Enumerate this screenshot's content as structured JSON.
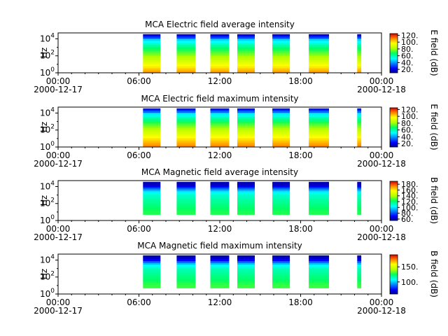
{
  "chart_data": [
    {
      "type": "heatmap",
      "title": "MCA  Electric field average intensity",
      "ylabel": "Hz",
      "colorbar_label": "E field (dB)",
      "colorbar_range": [
        10,
        125
      ],
      "colorbar_ticks": [
        "20.",
        "40.",
        "60.",
        "80.",
        "100.",
        "120."
      ],
      "y_scale": "log",
      "y_ticks": [
        "10^0",
        "10^2",
        "10^4"
      ],
      "x_ticks": [
        {
          "time": "00:00",
          "date": "2000-12-17"
        },
        {
          "time": "06:00",
          "date": ""
        },
        {
          "time": "12:00",
          "date": ""
        },
        {
          "time": "18:00",
          "date": ""
        },
        {
          "time": "00:00",
          "date": "2000-12-18"
        }
      ],
      "x_range_hours": [
        0,
        24
      ],
      "data_intervals_hours": [
        [
          6.3,
          7.6
        ],
        [
          8.8,
          10.2
        ],
        [
          11.3,
          12.7
        ],
        [
          13.3,
          14.6
        ],
        [
          15.9,
          17.2
        ],
        [
          18.6,
          20.1
        ],
        [
          22.2,
          22.5
        ]
      ],
      "spectrum_profile_db": [
        {
          "freq_hz": 1,
          "db": 110
        },
        {
          "freq_hz": 10,
          "db": 95
        },
        {
          "freq_hz": 100,
          "db": 80
        },
        {
          "freq_hz": 1000,
          "db": 65
        },
        {
          "freq_hz": 10000,
          "db": 45
        },
        {
          "freq_hz": 20000,
          "db": 20
        }
      ]
    },
    {
      "type": "heatmap",
      "title": "MCA  Electric field maximum intensity",
      "ylabel": "Hz",
      "colorbar_label": "E field (dB)",
      "colorbar_range": [
        10,
        125
      ],
      "colorbar_ticks": [
        "20.",
        "40.",
        "60.",
        "80.",
        "100.",
        "120."
      ],
      "y_scale": "log",
      "y_ticks": [
        "10^0",
        "10^2",
        "10^4"
      ],
      "x_ticks": [
        {
          "time": "00:00",
          "date": "2000-12-17"
        },
        {
          "time": "06:00",
          "date": ""
        },
        {
          "time": "12:00",
          "date": ""
        },
        {
          "time": "18:00",
          "date": ""
        },
        {
          "time": "00:00",
          "date": "2000-12-18"
        }
      ],
      "x_range_hours": [
        0,
        24
      ],
      "data_intervals_hours": [
        [
          6.3,
          7.6
        ],
        [
          8.8,
          10.2
        ],
        [
          11.3,
          12.7
        ],
        [
          13.3,
          14.6
        ],
        [
          15.9,
          17.2
        ],
        [
          18.6,
          20.1
        ],
        [
          22.2,
          22.5
        ]
      ],
      "spectrum_profile_db": [
        {
          "freq_hz": 1,
          "db": 112
        },
        {
          "freq_hz": 10,
          "db": 100
        },
        {
          "freq_hz": 100,
          "db": 85
        },
        {
          "freq_hz": 1000,
          "db": 68
        },
        {
          "freq_hz": 10000,
          "db": 48
        },
        {
          "freq_hz": 20000,
          "db": 25
        }
      ]
    },
    {
      "type": "heatmap",
      "title": "MCA  Magnetic field average intensity",
      "ylabel": "Hz",
      "colorbar_label": "B field (dB)",
      "colorbar_range": [
        55,
        190
      ],
      "colorbar_ticks": [
        "60.",
        "80.",
        "100.",
        "120.",
        "140.",
        "160.",
        "180."
      ],
      "y_scale": "log",
      "y_ticks": [
        "10^0",
        "10^2",
        "10^4"
      ],
      "x_ticks": [
        {
          "time": "00:00",
          "date": "2000-12-17"
        },
        {
          "time": "06:00",
          "date": ""
        },
        {
          "time": "12:00",
          "date": ""
        },
        {
          "time": "18:00",
          "date": ""
        },
        {
          "time": "00:00",
          "date": "2000-12-18"
        }
      ],
      "x_range_hours": [
        0,
        24
      ],
      "data_intervals_hours": [
        [
          6.3,
          7.6
        ],
        [
          8.8,
          10.2
        ],
        [
          11.3,
          12.7
        ],
        [
          13.3,
          14.6
        ],
        [
          15.9,
          17.2
        ],
        [
          18.6,
          20.1
        ],
        [
          22.2,
          22.5
        ]
      ],
      "spectrum_profile_db": [
        {
          "freq_hz": 10,
          "db": 125
        },
        {
          "freq_hz": 100,
          "db": 118
        },
        {
          "freq_hz": 1000,
          "db": 110
        },
        {
          "freq_hz": 3000,
          "db": 100
        },
        {
          "freq_hz": 10000,
          "db": 70
        },
        {
          "freq_hz": 20000,
          "db": 60
        }
      ]
    },
    {
      "type": "heatmap",
      "title": "MCA  Magnetic field maximum intensity",
      "ylabel": "Hz",
      "colorbar_label": "B field (dB)",
      "colorbar_range": [
        60,
        190
      ],
      "colorbar_ticks": [
        "100.",
        "150."
      ],
      "y_scale": "log",
      "y_ticks": [
        "10^0",
        "10^2",
        "10^4"
      ],
      "x_ticks": [
        {
          "time": "00:00",
          "date": "2000-12-17"
        },
        {
          "time": "06:00",
          "date": ""
        },
        {
          "time": "12:00",
          "date": ""
        },
        {
          "time": "18:00",
          "date": ""
        },
        {
          "time": "00:00",
          "date": "2000-12-18"
        }
      ],
      "x_range_hours": [
        0,
        24
      ],
      "data_intervals_hours": [
        [
          6.3,
          7.6
        ],
        [
          8.8,
          10.2
        ],
        [
          11.3,
          12.7
        ],
        [
          13.3,
          14.6
        ],
        [
          15.9,
          17.2
        ],
        [
          18.6,
          20.1
        ],
        [
          22.2,
          22.5
        ]
      ],
      "spectrum_profile_db": [
        {
          "freq_hz": 10,
          "db": 130
        },
        {
          "freq_hz": 100,
          "db": 122
        },
        {
          "freq_hz": 1000,
          "db": 115
        },
        {
          "freq_hz": 3000,
          "db": 105
        },
        {
          "freq_hz": 10000,
          "db": 75
        },
        {
          "freq_hz": 20000,
          "db": 65
        }
      ]
    }
  ]
}
